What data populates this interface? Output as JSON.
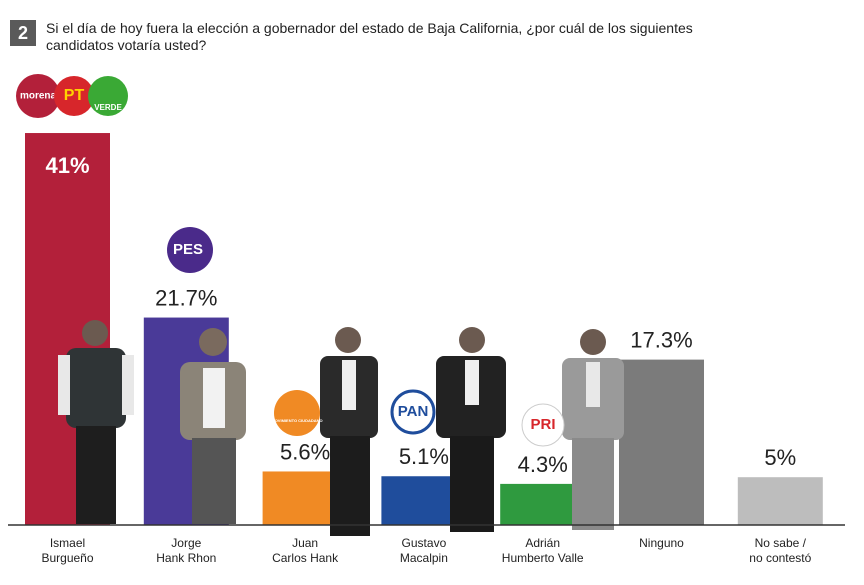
{
  "chart_data": {
    "type": "bar",
    "number": "2",
    "title": "Si el día de hoy fuera la elección a gobernador del estado de Baja California, ¿por cuál de los siguientes\ncandidatos votaría usted?",
    "categories": [
      "Ismael\nBurgueño",
      "Jorge\nHank Rhon",
      "Juan\nCarlos Hank",
      "Gustavo\nMacalpin",
      "Adrián\nHumberto Valle",
      "Ninguno",
      "No sabe /\nno contestó"
    ],
    "values": [
      41,
      21.7,
      5.6,
      5.1,
      4.3,
      17.3,
      5
    ],
    "value_labels": [
      "41%",
      "21.7%",
      "5.6%",
      "5.1%",
      "4.3%",
      "17.3%",
      "5%"
    ],
    "colors": [
      "#b3203a",
      "#4a3a98",
      "#f08a24",
      "#1f4d9c",
      "#2f9a3f",
      "#7b7b7b",
      "#bdbdbd"
    ]
  },
  "logos": [
    "morena",
    "PT",
    "VERDE",
    "PES",
    "MOVIMIENTO CIUDADANO",
    "PAN",
    "PRI"
  ]
}
